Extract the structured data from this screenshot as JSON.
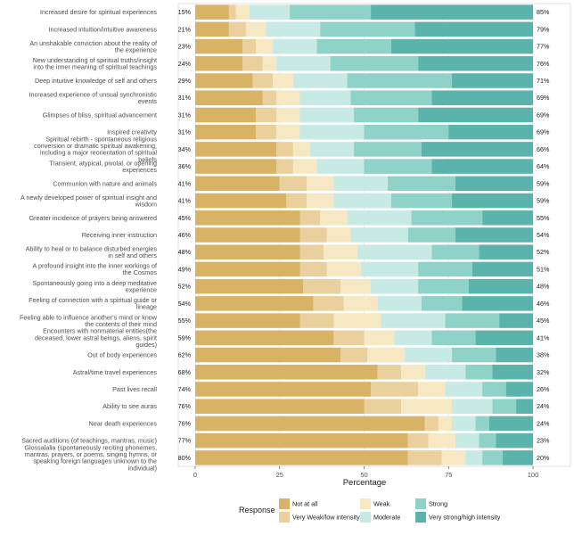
{
  "chart_data": {
    "type": "bar",
    "orientation": "horizontal",
    "stacked": true,
    "xlabel": "Percentage",
    "xlim": [
      0,
      100
    ],
    "xticks": [
      0,
      25,
      50,
      75,
      100
    ],
    "legend": {
      "title": "Response",
      "position": "bottom",
      "columns": [
        [
          "Not at all",
          "Very Weak/low intensity"
        ],
        [
          "Weak",
          "Moderate"
        ],
        [
          "Strong",
          "Very strong/high intensity"
        ]
      ]
    },
    "series": [
      {
        "name": "Not at all",
        "color": "#d8b365"
      },
      {
        "name": "Very Weak/low intensity",
        "color": "#e9d09c"
      },
      {
        "name": "Weak",
        "color": "#f6e8c3"
      },
      {
        "name": "Moderate",
        "color": "#c7eae5"
      },
      {
        "name": "Strong",
        "color": "#8fd2c8"
      },
      {
        "name": "Very strong/high intensity",
        "color": "#5ab4ac"
      }
    ],
    "items": [
      {
        "label": "Increased desire for spiritual experiences",
        "left_pct": "15%",
        "right_pct": "85%",
        "values": [
          10,
          2,
          4,
          12,
          24,
          48
        ]
      },
      {
        "label": "Increased intuition/intuitive awareness",
        "left_pct": "21%",
        "right_pct": "79%",
        "values": [
          10,
          5,
          6,
          16,
          28,
          35
        ]
      },
      {
        "label": "An unshakable conviction about the reality of the experience",
        "left_pct": "23%",
        "right_pct": "77%",
        "values": [
          14,
          4,
          5,
          13,
          22,
          42
        ]
      },
      {
        "label": "New understanding of spiritual truths/insight into the inner meaning of spiritual teachings",
        "left_pct": "24%",
        "right_pct": "76%",
        "values": [
          14,
          6,
          4,
          16,
          26,
          34
        ]
      },
      {
        "label": "Deep intuitive knowledge of self and others",
        "left_pct": "29%",
        "right_pct": "71%",
        "values": [
          17,
          6,
          6,
          16,
          31,
          24
        ]
      },
      {
        "label": "Increased experience of unsual synchronistic events",
        "left_pct": "31%",
        "right_pct": "69%",
        "values": [
          20,
          4,
          7,
          15,
          24,
          30
        ]
      },
      {
        "label": "Glimpses of bliss, spiritual advancement",
        "left_pct": "31%",
        "right_pct": "69%",
        "values": [
          18,
          6,
          7,
          16,
          19,
          34
        ]
      },
      {
        "label": "Inspired creativity",
        "left_pct": "31%",
        "right_pct": "69%",
        "values": [
          18,
          6,
          7,
          19,
          25,
          25
        ]
      },
      {
        "label": "Spiritual rebirth - spontaneous religious conversion or dramatic spiritual awakening, including a major reorientation of spiritual beliefs",
        "left_pct": "34%",
        "right_pct": "66%",
        "values": [
          24,
          5,
          5,
          13,
          20,
          33
        ]
      },
      {
        "label": "Transient, atypical, pivotal, or opening experiences",
        "left_pct": "36%",
        "right_pct": "64%",
        "values": [
          24,
          5,
          7,
          14,
          20,
          30
        ]
      },
      {
        "label": "Communion with nature and animals",
        "left_pct": "41%",
        "right_pct": "59%",
        "values": [
          25,
          8,
          8,
          16,
          20,
          23
        ]
      },
      {
        "label": "A newly developed power of spiritual insight and wisdom",
        "left_pct": "41%",
        "right_pct": "59%",
        "values": [
          27,
          6,
          8,
          17,
          18,
          24
        ]
      },
      {
        "label": "Greater incidence of prayers being answered",
        "left_pct": "45%",
        "right_pct": "55%",
        "values": [
          31,
          6,
          8,
          19,
          21,
          15
        ]
      },
      {
        "label": "Receiving inner instruction",
        "left_pct": "46%",
        "right_pct": "54%",
        "values": [
          31,
          8,
          7,
          17,
          14,
          23
        ]
      },
      {
        "label": "Ability to heal or to balance disturbed energies in self and others",
        "left_pct": "48%",
        "right_pct": "52%",
        "values": [
          31,
          7,
          10,
          22,
          14,
          16
        ]
      },
      {
        "label": "A profound insight into the inner workings of the Cosmos",
        "left_pct": "49%",
        "right_pct": "51%",
        "values": [
          31,
          8,
          10,
          17,
          16,
          18
        ]
      },
      {
        "label": "Spontaneously going into a deep meditative experience",
        "left_pct": "52%",
        "right_pct": "48%",
        "values": [
          32,
          11,
          9,
          14,
          15,
          19
        ]
      },
      {
        "label": "Feeling of connection with a spiritual guide or lineage",
        "left_pct": "54%",
        "right_pct": "46%",
        "values": [
          35,
          9,
          10,
          13,
          12,
          21
        ]
      },
      {
        "label": "Feeling able to influence another's mind or know the contents of their mind",
        "left_pct": "55%",
        "right_pct": "45%",
        "values": [
          31,
          10,
          14,
          19,
          16,
          10
        ]
      },
      {
        "label": "Encounters with nonmaterial entities(the deceased, lower astral beings, aliens, spirit guides)",
        "left_pct": "59%",
        "right_pct": "41%",
        "values": [
          41,
          9,
          9,
          11,
          13,
          17
        ]
      },
      {
        "label": "Out of body experiences",
        "left_pct": "62%",
        "right_pct": "38%",
        "values": [
          43,
          8,
          11,
          14,
          13,
          11
        ]
      },
      {
        "label": "Astral/time travel experiences",
        "left_pct": "68%",
        "right_pct": "32%",
        "values": [
          54,
          7,
          7,
          12,
          8,
          12
        ]
      },
      {
        "label": "Past lives recall",
        "left_pct": "74%",
        "right_pct": "26%",
        "values": [
          52,
          14,
          8,
          11,
          7,
          8
        ]
      },
      {
        "label": "Ability to see auras",
        "left_pct": "76%",
        "right_pct": "24%",
        "values": [
          50,
          11,
          15,
          12,
          7,
          5
        ]
      },
      {
        "label": "Near death experiences",
        "left_pct": "76%",
        "right_pct": "24%",
        "values": [
          68,
          4,
          4,
          7,
          4,
          13
        ]
      },
      {
        "label": "Sacred auditions (of teachings, mantras, music)",
        "left_pct": "77%",
        "right_pct": "23%",
        "values": [
          63,
          6,
          8,
          7,
          5,
          11
        ]
      },
      {
        "label": "Glossalalia (spontaneously reciting phonemes, mantras, prayers, or poems, singing hymns, or speaking foreign languages unknown to the individual)",
        "left_pct": "80%",
        "right_pct": "20%",
        "values": [
          63,
          10,
          7,
          5,
          6,
          9
        ]
      }
    ]
  }
}
